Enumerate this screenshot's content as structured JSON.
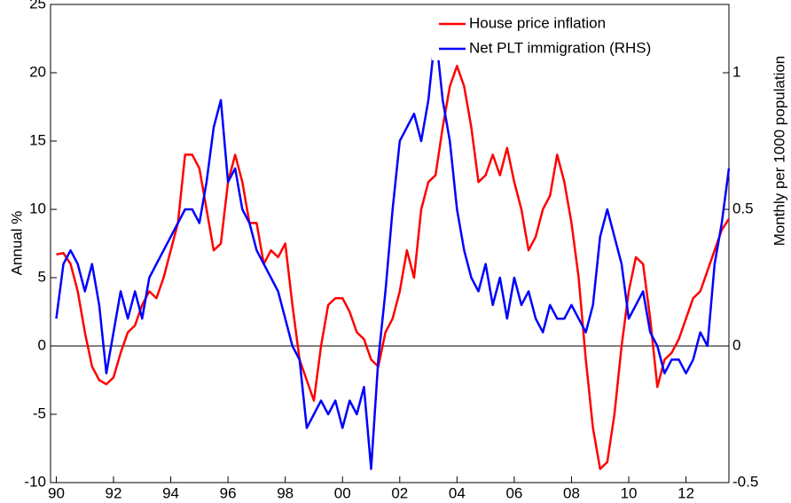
{
  "chart_data": {
    "type": "line",
    "y_label": "Annual %",
    "y2_label": "Monthly per 1000 population",
    "x": [
      1990,
      1990.25,
      1990.5,
      1990.75,
      1991,
      1991.25,
      1991.5,
      1991.75,
      1992,
      1992.25,
      1992.5,
      1992.75,
      1993,
      1993.25,
      1993.5,
      1993.75,
      1994,
      1994.25,
      1994.5,
      1994.75,
      1995,
      1995.25,
      1995.5,
      1995.75,
      1996,
      1996.25,
      1996.5,
      1996.75,
      1997,
      1997.25,
      1997.5,
      1997.75,
      1998,
      1998.25,
      1998.5,
      1998.75,
      1999,
      1999.25,
      1999.5,
      1999.75,
      2000,
      2000.25,
      2000.5,
      2000.75,
      2001,
      2001.25,
      2001.5,
      2001.75,
      2002,
      2002.25,
      2002.5,
      2002.75,
      2003,
      2003.25,
      2003.5,
      2003.75,
      2004,
      2004.25,
      2004.5,
      2004.75,
      2005,
      2005.25,
      2005.5,
      2005.75,
      2006,
      2006.25,
      2006.5,
      2006.75,
      2007,
      2007.25,
      2007.5,
      2007.75,
      2008,
      2008.25,
      2008.5,
      2008.75,
      2009,
      2009.25,
      2009.5,
      2009.75,
      2010,
      2010.25,
      2010.5,
      2010.75,
      2011,
      2011.25,
      2011.5,
      2011.75,
      2012,
      2012.25,
      2012.5,
      2012.75,
      2013,
      2013.25,
      2013.5
    ],
    "series": [
      {
        "name": "House price inflation",
        "color": "#ff0000",
        "axis": "y",
        "values": [
          6.7,
          6.8,
          6,
          4,
          1,
          -1.5,
          -2.5,
          -2.8,
          -2.3,
          -0.5,
          1,
          1.5,
          3,
          4,
          3.5,
          5,
          7,
          9,
          14,
          14,
          13,
          10,
          7,
          7.5,
          12,
          14,
          12,
          9,
          9,
          6,
          7,
          6.5,
          7.5,
          3,
          -1,
          -2.5,
          -4,
          0,
          3,
          3.5,
          3.5,
          2.5,
          1,
          0.5,
          -1,
          -1.5,
          1,
          2,
          4,
          7,
          5,
          10,
          12,
          12.5,
          16,
          19,
          20.5,
          19,
          16,
          12,
          12.5,
          14,
          12.5,
          14.5,
          12,
          10,
          7,
          8,
          10,
          11,
          14,
          12,
          9,
          5,
          -1,
          -6,
          -9,
          -8.5,
          -5,
          0,
          4,
          6.5,
          6,
          2,
          -3,
          -1,
          -0.5,
          0.5,
          2,
          3.5,
          4,
          5.5,
          7,
          8.5,
          9.3
        ]
      },
      {
        "name": "Net PLT immigration (RHS)",
        "color": "#0000ff",
        "axis": "y2",
        "values": [
          0.1,
          0.3,
          0.35,
          0.3,
          0.2,
          0.3,
          0.15,
          -0.1,
          0.05,
          0.2,
          0.1,
          0.2,
          0.1,
          0.25,
          0.3,
          0.35,
          0.4,
          0.45,
          0.5,
          0.5,
          0.45,
          0.6,
          0.8,
          0.9,
          0.6,
          0.65,
          0.5,
          0.45,
          0.35,
          0.3,
          0.25,
          0.2,
          0.1,
          0,
          -0.05,
          -0.3,
          -0.25,
          -0.2,
          -0.25,
          -0.2,
          -0.3,
          -0.2,
          -0.25,
          -0.15,
          -0.45,
          -0.05,
          0.2,
          0.5,
          0.75,
          0.8,
          0.85,
          0.75,
          0.9,
          1.15,
          0.9,
          0.75,
          0.5,
          0.35,
          0.25,
          0.2,
          0.3,
          0.15,
          0.25,
          0.1,
          0.25,
          0.15,
          0.2,
          0.1,
          0.05,
          0.15,
          0.1,
          0.1,
          0.15,
          0.1,
          0.05,
          0.15,
          0.4,
          0.5,
          0.4,
          0.3,
          0.1,
          0.15,
          0.2,
          0.05,
          0,
          -0.1,
          -0.05,
          -0.05,
          -0.1,
          -0.05,
          0.05,
          0,
          0.3,
          0.45,
          0.65
        ]
      }
    ],
    "xlim": [
      1989.8,
      2013.5
    ],
    "xticks": [
      {
        "value": 1990,
        "label": "90"
      },
      {
        "value": 1992,
        "label": "92"
      },
      {
        "value": 1994,
        "label": "94"
      },
      {
        "value": 1996,
        "label": "96"
      },
      {
        "value": 1998,
        "label": "98"
      },
      {
        "value": 2000,
        "label": "00"
      },
      {
        "value": 2002,
        "label": "02"
      },
      {
        "value": 2004,
        "label": "04"
      },
      {
        "value": 2006,
        "label": "06"
      },
      {
        "value": 2008,
        "label": "08"
      },
      {
        "value": 2010,
        "label": "10"
      },
      {
        "value": 2012,
        "label": "12"
      }
    ],
    "ylim": [
      -10,
      25
    ],
    "yticks": [
      -10,
      -5,
      0,
      5,
      10,
      15,
      20,
      25
    ],
    "y2lim": [
      -0.5,
      1.25
    ],
    "y2ticks": [
      -0.5,
      0,
      0.5,
      1
    ],
    "grid": false,
    "legend": "upper right"
  }
}
